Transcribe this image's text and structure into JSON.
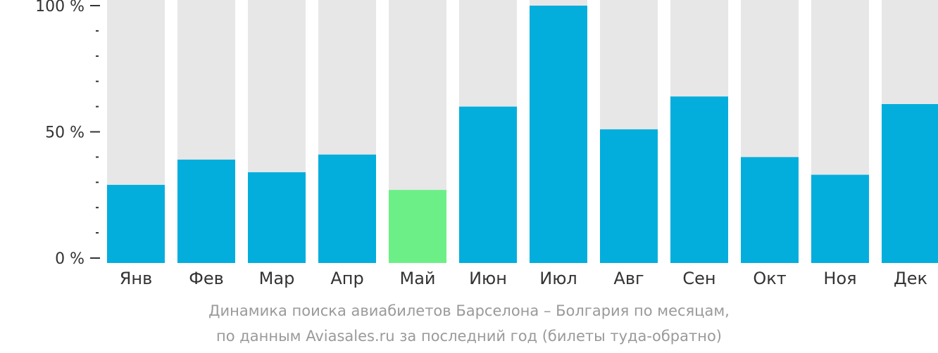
{
  "chart_data": {
    "type": "bar",
    "categories": [
      "Янв",
      "Фев",
      "Мар",
      "Апр",
      "Май",
      "Июн",
      "Июл",
      "Авг",
      "Сен",
      "Окт",
      "Ноя",
      "Дек"
    ],
    "values": [
      29,
      39,
      34,
      41,
      27,
      60,
      100,
      51,
      64,
      40,
      33,
      61
    ],
    "highlight_index": 4,
    "ylim": [
      0,
      100
    ],
    "yticks": [
      0,
      50,
      100
    ],
    "ytick_labels": [
      "0 %",
      "50 %",
      "100 %"
    ],
    "minor_ytick_step": 10,
    "grid": false,
    "colors": {
      "bar": "#03AEDC",
      "highlight": "#6DEF88",
      "background_bar": "#E7E7E8",
      "axis": "#333333"
    }
  },
  "caption": {
    "line1": "Динамика поиска авиабилетов Барселона – Болгария по месяцам,",
    "line2": "по данным Aviasales.ru за последний год (билеты туда-обратно)"
  }
}
